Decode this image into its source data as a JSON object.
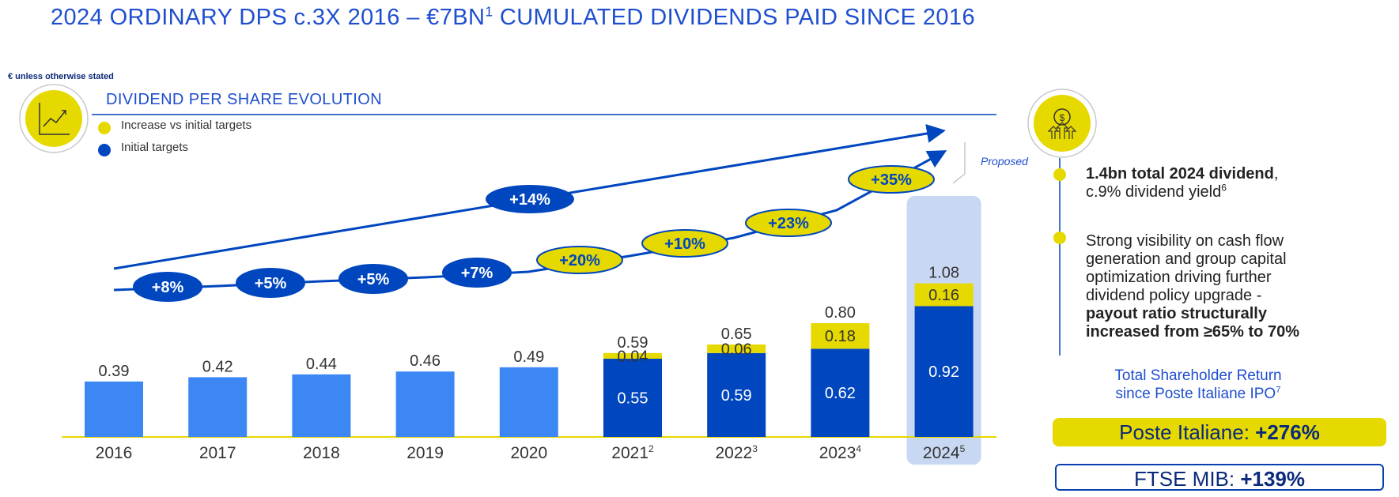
{
  "header": {
    "title_main": "2024 ORDINARY DPS c.3X 2016 – €7BN",
    "title_sup": "1",
    "title_rest": " CUMULATED DIVIDENDS PAID SINCE 2016",
    "unit_note": "€ unless otherwise stated"
  },
  "section": {
    "title": "DIVIDEND PER SHARE EVOLUTION",
    "chart_icon": "line-chart-icon",
    "dividend_icon": "dollar-coin-growth-icon"
  },
  "legend": {
    "increase": "Increase vs initial targets",
    "initial": "Initial targets"
  },
  "colors": {
    "accent_blue": "#1f4fd0",
    "dark_blue": "#0046be",
    "light_blue": "#3d87f5",
    "yellow": "#e6d900",
    "highlight_bg": "#c9d8f2"
  },
  "chart_data": {
    "type": "bar",
    "categories": [
      "2016",
      "2017",
      "2018",
      "2019",
      "2020",
      "2021",
      "2022",
      "2023",
      "2024"
    ],
    "category_footnotes": [
      "",
      "",
      "",
      "",
      "",
      "2",
      "3",
      "4",
      "5"
    ],
    "series": [
      {
        "name": "Initial targets",
        "values": [
          0.39,
          0.42,
          0.44,
          0.46,
          0.49,
          0.55,
          0.59,
          0.62,
          0.92
        ]
      },
      {
        "name": "Increase vs initial targets",
        "values": [
          null,
          null,
          null,
          null,
          null,
          0.04,
          0.06,
          0.18,
          0.16
        ]
      }
    ],
    "totals": [
      0.39,
      0.42,
      0.44,
      0.46,
      0.49,
      0.59,
      0.65,
      0.8,
      1.08
    ],
    "labels": {
      "totals": [
        "0.39",
        "0.42",
        "0.44",
        "0.46",
        "0.49",
        "0.59",
        "0.65",
        "0.80",
        "1.08"
      ],
      "base": [
        "",
        "",
        "",
        "",
        "",
        "0.55",
        "0.59",
        "0.62",
        "0.92"
      ],
      "increase": [
        "",
        "",
        "",
        "",
        "",
        "0.04",
        "0.06",
        "0.18",
        "0.16"
      ]
    },
    "growth": [
      "+8%",
      "+5%",
      "+5%",
      "+7%",
      "+20%",
      "+10%",
      "+23%",
      "+35%"
    ],
    "cagr": "+14%",
    "proposed_label": "Proposed",
    "highlighted_category": "2024",
    "ylim": [
      0,
      1.25
    ]
  },
  "right_panel": {
    "bullet1_bold": "1.4bn total 2024 dividend",
    "bullet1_rest": ",",
    "bullet1_line2": "c.9% dividend yield",
    "bullet1_sup": "6",
    "bullet2_lines": [
      "Strong visibility on cash flow",
      "generation and group capital",
      "optimization driving further",
      "dividend policy upgrade -"
    ],
    "bullet2_bold_lines": [
      "payout ratio structurally",
      "increased from ≥65% to 70%"
    ],
    "tsr_line1": "Total Shareholder Return",
    "tsr_line2": "since Poste Italiane IPO",
    "tsr_sup": "7",
    "poste_label": "Poste Italiane: ",
    "poste_value": "+276%",
    "ftse_label": "FTSE MIB: ",
    "ftse_value": "+139%"
  }
}
